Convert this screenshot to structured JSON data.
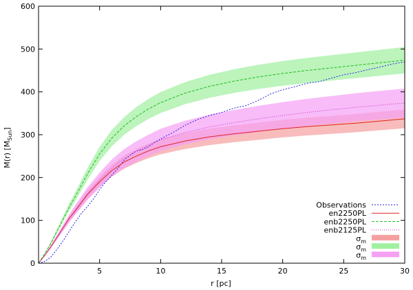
{
  "chart_data": {
    "type": "line",
    "xlabel": "r [pc]",
    "ylabel": {
      "main": "M(r) [M",
      "sub": "Sun",
      "close": "]"
    },
    "xlim": [
      0,
      30
    ],
    "ylim": [
      0,
      600
    ],
    "xticks": [
      5,
      10,
      15,
      20,
      25,
      30
    ],
    "yticks": [
      0,
      100,
      200,
      300,
      400,
      500,
      600
    ],
    "grid": false,
    "legend_position": "bottom-right",
    "colors": {
      "observations": "#2222dd",
      "en2250PL": "#dd2222",
      "enb2250PL": "#22bb22",
      "enb2125PL": "#cc33cc"
    },
    "series": [
      {
        "name": "Observations",
        "x": [
          0,
          0.5,
          1,
          1.5,
          2,
          2.5,
          3,
          3.5,
          4,
          4.5,
          5,
          5.5,
          6,
          6.5,
          7,
          7.5,
          8,
          8.5,
          9,
          9.5,
          10,
          11,
          12,
          13,
          14,
          15,
          16,
          17,
          18,
          19,
          20,
          21,
          22,
          23,
          24,
          25,
          26,
          27,
          28,
          29,
          30
        ],
        "y": [
          0,
          4,
          14,
          32,
          52,
          74,
          96,
          116,
          132,
          150,
          172,
          190,
          205,
          222,
          240,
          252,
          262,
          265,
          272,
          282,
          290,
          305,
          322,
          335,
          345,
          352,
          362,
          368,
          380,
          395,
          405,
          412,
          420,
          424,
          432,
          440,
          445,
          452,
          458,
          465,
          470
        ]
      },
      {
        "name": "en2250PL",
        "x": [
          0,
          0.5,
          1,
          1.5,
          2,
          2.5,
          3,
          4,
          5,
          6,
          7,
          8,
          9,
          10,
          12,
          14,
          16,
          18,
          20,
          22,
          24,
          26,
          28,
          30
        ],
        "y": [
          0,
          18,
          38,
          60,
          82,
          104,
          122,
          160,
          190,
          216,
          236,
          250,
          262,
          272,
          285,
          295,
          302,
          308,
          314,
          319,
          323,
          327,
          332,
          337
        ]
      },
      {
        "name": "enb2250PL",
        "x": [
          0,
          0.5,
          1,
          1.5,
          2,
          2.5,
          3,
          4,
          5,
          6,
          7,
          8,
          9,
          10,
          12,
          14,
          16,
          18,
          20,
          22,
          24,
          26,
          28,
          30
        ],
        "y": [
          0,
          22,
          46,
          74,
          102,
          130,
          155,
          208,
          255,
          292,
          320,
          342,
          360,
          375,
          397,
          413,
          425,
          435,
          443,
          450,
          456,
          462,
          468,
          474
        ]
      },
      {
        "name": "enb2125PL",
        "x": [
          0,
          0.5,
          1,
          1.5,
          2,
          2.5,
          3,
          4,
          5,
          6,
          7,
          8,
          9,
          10,
          12,
          14,
          16,
          18,
          20,
          22,
          24,
          26,
          28,
          30
        ],
        "y": [
          0,
          18,
          38,
          60,
          82,
          104,
          124,
          162,
          194,
          222,
          244,
          261,
          275,
          288,
          305,
          318,
          328,
          337,
          345,
          352,
          358,
          364,
          369,
          374
        ]
      }
    ],
    "bands": [
      {
        "name": "σ",
        "subscript": "m",
        "color": "#f5a0a0",
        "base_series": "en2250PL",
        "halfwidth_frac": 0.065
      },
      {
        "name": "σ",
        "subscript": "m",
        "color": "#a0f0a0",
        "base_series": "enb2250PL",
        "halfwidth_frac": 0.065
      },
      {
        "name": "σ",
        "subscript": "m",
        "color": "#f5a0f5",
        "base_series": "enb2125PL",
        "halfwidth_frac": 0.09
      }
    ]
  }
}
